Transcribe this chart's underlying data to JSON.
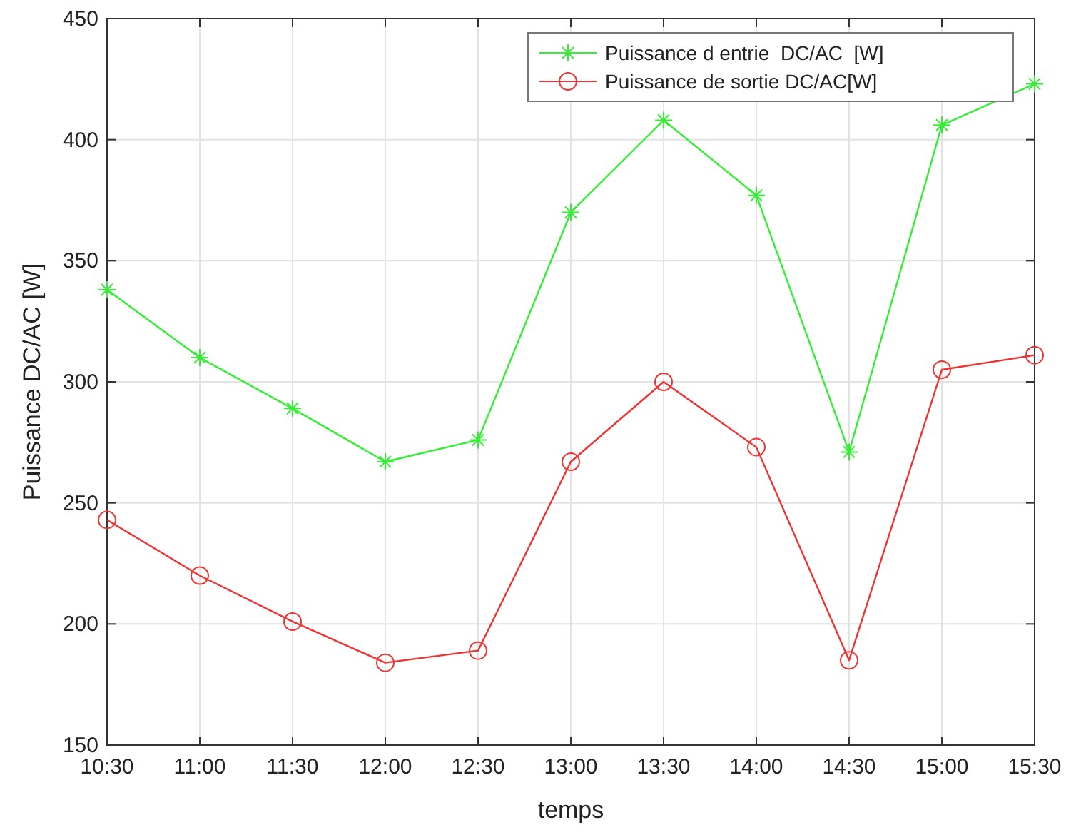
{
  "chart_data": {
    "type": "line",
    "xlabel": "temps",
    "ylabel": "Puissance DC/AC [W]",
    "categories": [
      "10:30",
      "11:00",
      "11:30",
      "12:00",
      "12:30",
      "13:00",
      "13:30",
      "14:00",
      "14:30",
      "15:00",
      "15:30"
    ],
    "series": [
      {
        "name": "Puissance d entrie  DC/AC  [W]",
        "color": "#33ee33",
        "marker": "cross",
        "values": [
          338,
          310,
          289,
          267,
          276,
          370,
          408,
          377,
          271,
          406,
          423
        ]
      },
      {
        "name": "Puissance de sortie DC/AC[W]",
        "color": "#ee3333",
        "marker": "circle",
        "values": [
          243,
          220,
          201,
          184,
          189,
          267,
          300,
          273,
          185,
          305,
          311
        ]
      }
    ],
    "ylim": [
      150,
      450
    ],
    "yticks": [
      150,
      200,
      250,
      300,
      350,
      400,
      450
    ],
    "grid": true,
    "legend": "top right",
    "line_style": "solid"
  }
}
